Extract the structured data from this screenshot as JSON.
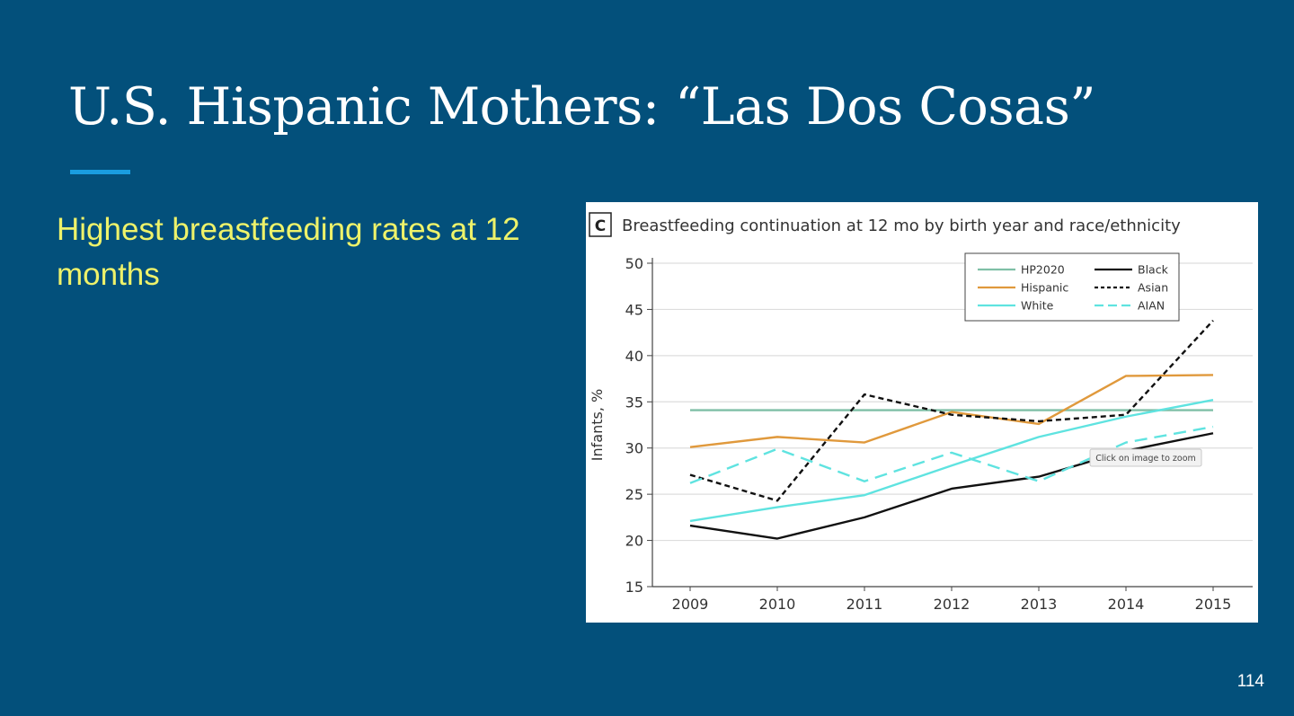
{
  "slide": {
    "title": "U.S. Hispanic Mothers: “Las Dos Cosas”",
    "bullet": "Highest breastfeeding rates at 12 months",
    "page_number": "114"
  },
  "figure": {
    "panel_label": "C",
    "zoom_tooltip": "Click on image to zoom"
  },
  "colors": {
    "background": "#03507b",
    "title_accent": "#1a9de0",
    "bullet_text": "#eef26a"
  },
  "chart_data": {
    "type": "line",
    "title": "Breastfeeding continuation at 12 mo by birth year and race/ethnicity",
    "xlabel": "",
    "ylabel": "Infants, %",
    "x": [
      2009,
      2010,
      2011,
      2012,
      2013,
      2014,
      2015
    ],
    "ylim": [
      15,
      50
    ],
    "yticks": [
      15,
      20,
      25,
      30,
      35,
      40,
      45,
      50
    ],
    "grid": true,
    "legend_position": "top-right",
    "series": [
      {
        "name": "HP2020",
        "values": [
          34.1,
          34.1,
          34.1,
          34.1,
          34.1,
          34.1,
          34.1
        ],
        "color": "#7fbfa6",
        "dash": "solid"
      },
      {
        "name": "Hispanic",
        "values": [
          30.1,
          31.2,
          30.6,
          33.9,
          32.6,
          37.8,
          37.9
        ],
        "color": "#e0993c",
        "dash": "solid"
      },
      {
        "name": "White",
        "values": [
          22.1,
          23.6,
          24.9,
          28.1,
          31.2,
          33.4,
          35.2
        ],
        "color": "#5fe3e0",
        "dash": "solid"
      },
      {
        "name": "Black",
        "values": [
          21.6,
          20.2,
          22.5,
          25.6,
          26.9,
          29.7,
          31.6
        ],
        "color": "#111111",
        "dash": "solid"
      },
      {
        "name": "Asian",
        "values": [
          27.1,
          24.3,
          35.8,
          33.6,
          32.9,
          33.6,
          43.8
        ],
        "color": "#111111",
        "dash": "short"
      },
      {
        "name": "AIAN",
        "values": [
          26.2,
          29.9,
          26.4,
          29.5,
          26.4,
          30.6,
          32.3
        ],
        "color": "#5fe3e0",
        "dash": "long"
      }
    ]
  }
}
